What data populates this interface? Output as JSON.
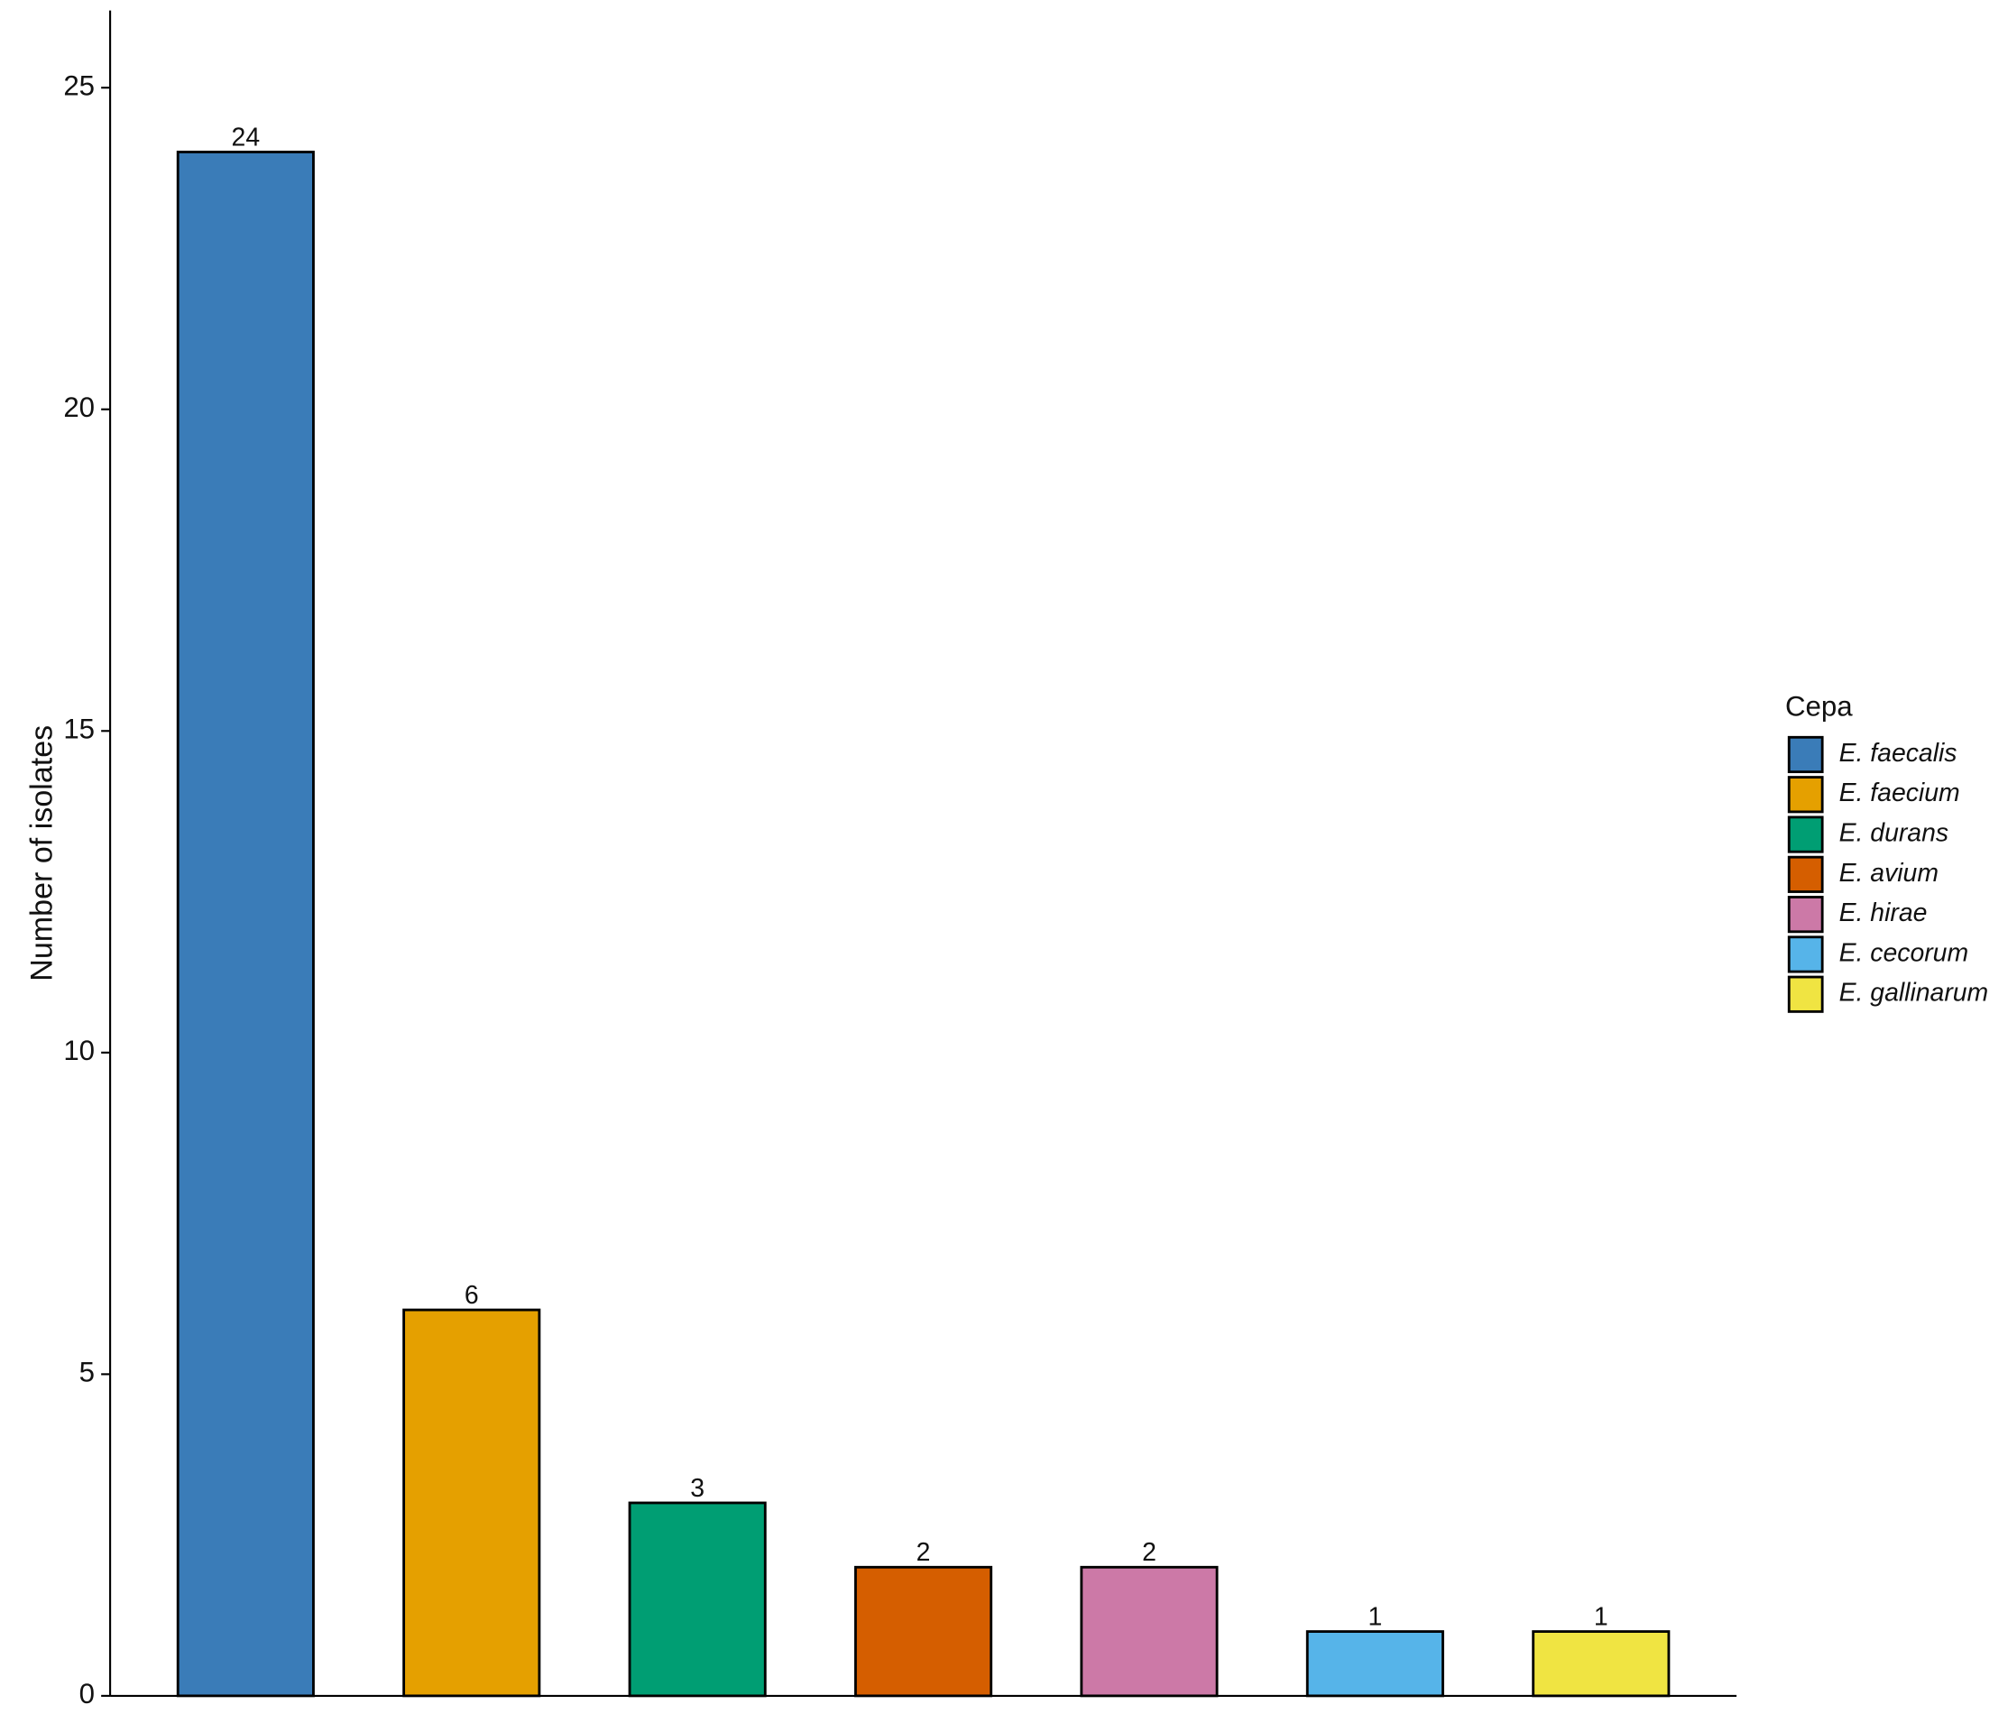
{
  "chart_data": {
    "type": "bar",
    "y_label": "Number of isolates",
    "legend_title": "Cepa",
    "categories": [
      "E. faecalis",
      "E. faecium",
      "E. durans",
      "E. avium",
      "E. hirae",
      "E. cecorum",
      "E. gallinarum"
    ],
    "values": [
      24,
      6,
      3,
      2,
      2,
      1,
      1
    ],
    "colors": [
      "#3a7cb8",
      "#e5a000",
      "#009e73",
      "#d55e00",
      "#cc79a7",
      "#56b4e9",
      "#f0e442"
    ],
    "ylim": [
      0,
      26.2
    ],
    "yticks": [
      0,
      5,
      10,
      15,
      20,
      25
    ],
    "legend_position": "right"
  }
}
